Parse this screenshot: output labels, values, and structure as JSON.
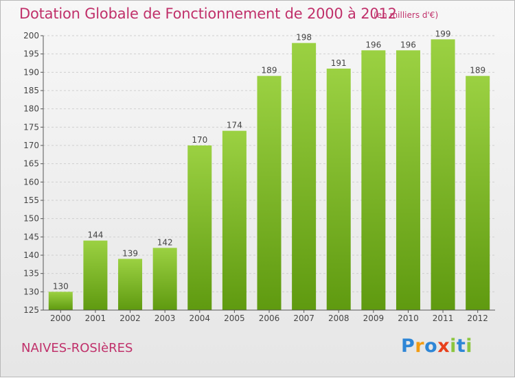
{
  "header": {
    "title": "Dotation Globale de Fonctionnement de 2000 à 2012",
    "unit": "(en milliers d'€)"
  },
  "footer": {
    "commune": "NAIVES-ROSIèRES",
    "brand": "Proxiti"
  },
  "colors": {
    "bar_top": "#9bd142",
    "bar_bottom": "#5f9a10",
    "title": "#c0306a",
    "axis": "#555555"
  },
  "chart_data": {
    "type": "bar",
    "title": "Dotation Globale de Fonctionnement de 2000 à 2012",
    "ylabel": "(en milliers d'€)",
    "xlabel": "",
    "categories": [
      "2000",
      "2001",
      "2002",
      "2003",
      "2004",
      "2005",
      "2006",
      "2007",
      "2008",
      "2009",
      "2010",
      "2011",
      "2012"
    ],
    "values": [
      130,
      144,
      139,
      142,
      170,
      174,
      189,
      198,
      191,
      196,
      196,
      199,
      189
    ],
    "ylim": [
      125,
      200
    ],
    "yticks": [
      125,
      130,
      135,
      140,
      145,
      150,
      155,
      160,
      165,
      170,
      175,
      180,
      185,
      190,
      195,
      200
    ],
    "grid": true,
    "data_labels": true
  }
}
